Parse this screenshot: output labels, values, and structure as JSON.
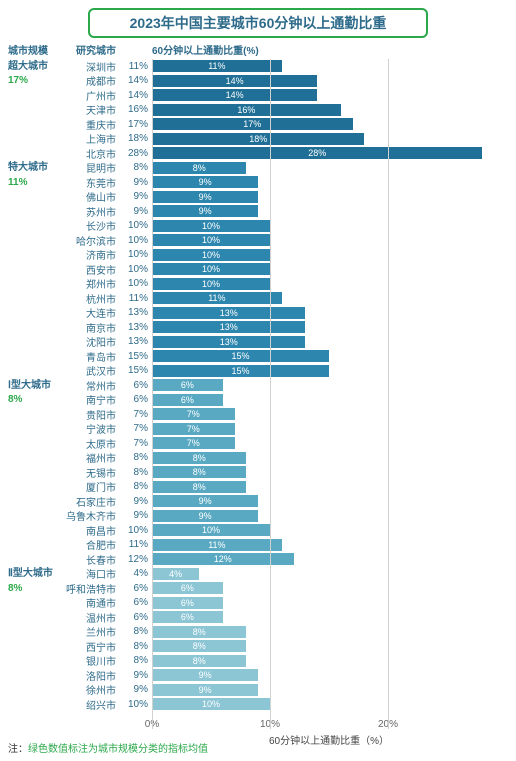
{
  "title": "2023年中国主要城市60分钟以上通勤比重",
  "title_border_color": "#2ba84a",
  "title_text_color": "#2e6b8a",
  "header": {
    "cat": "城市规模",
    "city": "研究城市",
    "val": "60分钟以上通勤比重(%)"
  },
  "x_axis": {
    "label": "60分钟以上通勤比重（%）",
    "max": 30,
    "ticks": [
      0,
      10,
      20
    ],
    "tick_labels": [
      "0%",
      "10%",
      "20%"
    ]
  },
  "colors": {
    "group1": "#1f6f96",
    "group2": "#2d86ad",
    "group3": "#5aa9c2",
    "group4": "#8cc5d4",
    "grid": "#d0d0d0",
    "header_text": "#2e6b8a"
  },
  "footnote_prefix": "注：",
  "footnote_green": "绿色数值标注为城市规模分类的指标均值",
  "groups": [
    {
      "name": "超大城市",
      "pct": "17%",
      "color_key": "group1",
      "rows": [
        {
          "city": "深圳市",
          "val": 11,
          "label": "11%"
        },
        {
          "city": "成都市",
          "val": 14,
          "label": "14%"
        },
        {
          "city": "广州市",
          "val": 14,
          "label": "14%"
        },
        {
          "city": "天津市",
          "val": 16,
          "label": "16%"
        },
        {
          "city": "重庆市",
          "val": 17,
          "label": "17%"
        },
        {
          "city": "上海市",
          "val": 18,
          "label": "18%"
        },
        {
          "city": "北京市",
          "val": 28,
          "label": "28%"
        }
      ]
    },
    {
      "name": "特大城市",
      "pct": "11%",
      "color_key": "group2",
      "rows": [
        {
          "city": "昆明市",
          "val": 8,
          "label": "8%"
        },
        {
          "city": "东莞市",
          "val": 9,
          "label": "9%"
        },
        {
          "city": "佛山市",
          "val": 9,
          "label": "9%"
        },
        {
          "city": "苏州市",
          "val": 9,
          "label": "9%"
        },
        {
          "city": "长沙市",
          "val": 10,
          "label": "10%"
        },
        {
          "city": "哈尔滨市",
          "val": 10,
          "label": "10%"
        },
        {
          "city": "济南市",
          "val": 10,
          "label": "10%"
        },
        {
          "city": "西安市",
          "val": 10,
          "label": "10%"
        },
        {
          "city": "郑州市",
          "val": 10,
          "label": "10%"
        },
        {
          "city": "杭州市",
          "val": 11,
          "label": "11%"
        },
        {
          "city": "大连市",
          "val": 13,
          "label": "13%"
        },
        {
          "city": "南京市",
          "val": 13,
          "label": "13%"
        },
        {
          "city": "沈阳市",
          "val": 13,
          "label": "13%"
        },
        {
          "city": "青岛市",
          "val": 15,
          "label": "15%"
        },
        {
          "city": "武汉市",
          "val": 15,
          "label": "15%"
        }
      ]
    },
    {
      "name": "Ⅰ型大城市",
      "pct": "8%",
      "color_key": "group3",
      "rows": [
        {
          "city": "常州市",
          "val": 6,
          "label": "6%"
        },
        {
          "city": "南宁市",
          "val": 6,
          "label": "6%"
        },
        {
          "city": "贵阳市",
          "val": 7,
          "label": "7%"
        },
        {
          "city": "宁波市",
          "val": 7,
          "label": "7%"
        },
        {
          "city": "太原市",
          "val": 7,
          "label": "7%"
        },
        {
          "city": "福州市",
          "val": 8,
          "label": "8%"
        },
        {
          "city": "无锡市",
          "val": 8,
          "label": "8%"
        },
        {
          "city": "厦门市",
          "val": 8,
          "label": "8%"
        },
        {
          "city": "石家庄市",
          "val": 9,
          "label": "9%"
        },
        {
          "city": "乌鲁木齐市",
          "val": 9,
          "label": "9%"
        },
        {
          "city": "南昌市",
          "val": 10,
          "label": "10%"
        },
        {
          "city": "合肥市",
          "val": 11,
          "label": "11%"
        },
        {
          "city": "长春市",
          "val": 12,
          "label": "12%"
        }
      ]
    },
    {
      "name": "Ⅱ型大城市",
      "pct": "8%",
      "color_key": "group4",
      "rows": [
        {
          "city": "海口市",
          "val": 4,
          "label": "4%"
        },
        {
          "city": "呼和浩特市",
          "val": 6,
          "label": "6%"
        },
        {
          "city": "南通市",
          "val": 6,
          "label": "6%"
        },
        {
          "city": "温州市",
          "val": 6,
          "label": "6%"
        },
        {
          "city": "兰州市",
          "val": 8,
          "label": "8%"
        },
        {
          "city": "西宁市",
          "val": 8,
          "label": "8%"
        },
        {
          "city": "银川市",
          "val": 8,
          "label": "8%"
        },
        {
          "city": "洛阳市",
          "val": 9,
          "label": "9%"
        },
        {
          "city": "徐州市",
          "val": 9,
          "label": "9%"
        },
        {
          "city": "绍兴市",
          "val": 10,
          "label": "10%"
        }
      ]
    }
  ]
}
